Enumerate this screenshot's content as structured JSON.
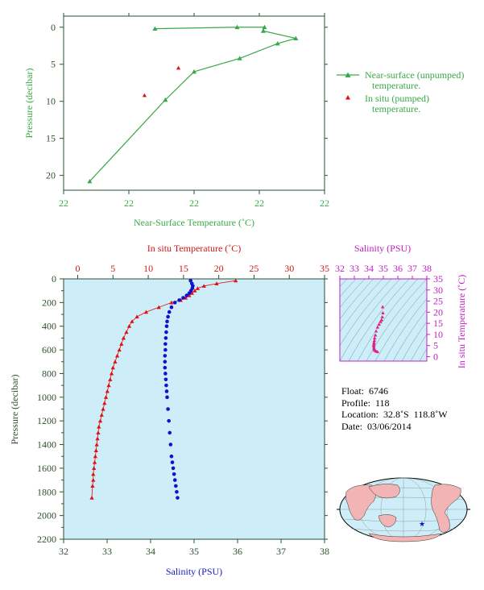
{
  "top_chart": {
    "xlabel": "Near-Surface Temperature (˚C)",
    "ylabel": "Pressure (decibar)",
    "xticks": [
      "22",
      "22",
      "22",
      "22",
      "22"
    ],
    "yticks": [
      "0",
      "5",
      "10",
      "15",
      "20"
    ],
    "legend": {
      "near_surface_line1": "Near-surface (unpumped)",
      "near_surface_line2": "temperature.",
      "in_situ_line1": "In situ (pumped)",
      "in_situ_line2": "temperature."
    }
  },
  "bottom_chart": {
    "top_xlabel": "In situ Temperature (˚C)",
    "bottom_xlabel": "Salinity (PSU)",
    "ylabel": "Pressure (decibar)",
    "temp_ticks": [
      "0",
      "5",
      "10",
      "15",
      "20",
      "25",
      "30",
      "35"
    ],
    "sal_ticks": [
      "32",
      "33",
      "34",
      "35",
      "36",
      "37",
      "38"
    ],
    "pres_ticks": [
      "0",
      "200",
      "400",
      "600",
      "800",
      "1000",
      "1200",
      "1400",
      "1600",
      "1800",
      "2000",
      "2200"
    ]
  },
  "ts_chart": {
    "top_label": "Salinity (PSU)",
    "right_label": "In situ Temperature (˚C)",
    "sal_ticks": [
      "32",
      "33",
      "34",
      "35",
      "36",
      "37",
      "38"
    ],
    "temp_ticks": [
      "0",
      "5",
      "10",
      "15",
      "20",
      "25",
      "30",
      "35"
    ]
  },
  "info": {
    "float": "Float:  6746",
    "profile": "Profile:  118",
    "location": "Location:  32.8˚S  118.8˚W",
    "date": "Date:  03/06/2014"
  },
  "footer_tiny": "",
  "colors": {
    "green": "#3aa84a",
    "red": "#e01010",
    "blue": "#1010d0",
    "magenta": "#e0208a",
    "panel_bg": "#cdeef8"
  },
  "chart_data": [
    {
      "type": "line",
      "title": "",
      "xlabel": "Near-Surface Temperature (˚C)",
      "ylabel": "Pressure (decibar)",
      "x_range_fraction": [
        0,
        1
      ],
      "ylim": [
        22,
        -1.5
      ],
      "series": [
        {
          "name": "Near-surface (unpumped) temperature.",
          "x_fraction": [
            0.35,
            0.665,
            0.77,
            0.765,
            0.89,
            0.82,
            0.675,
            0.5,
            0.39,
            0.1
          ],
          "y": [
            0.2,
            0.0,
            0.0,
            0.5,
            1.5,
            2.2,
            4.2,
            6.0,
            9.8,
            20.8
          ]
        },
        {
          "name": "In situ (pumped) temperature.",
          "x_fraction": [
            0.44,
            0.31
          ],
          "y": [
            5.5,
            9.2
          ]
        }
      ]
    },
    {
      "type": "line",
      "title": "",
      "ylabel": "Pressure (decibar)",
      "ylim": [
        2200,
        0
      ],
      "series": [
        {
          "name": "In situ Temperature (˚C)",
          "xlabel": "In situ Temperature (˚C)",
          "xlim": [
            -2,
            35
          ],
          "x": [
            22.4,
            19.7,
            17.9,
            17.0,
            16.6,
            16.2,
            15.8,
            15.3,
            14.6,
            13.3,
            11.5,
            9.7,
            8.4,
            7.7,
            7.3,
            6.9,
            6.5,
            6.2,
            5.9,
            5.6,
            5.3,
            5.0,
            4.8,
            4.6,
            4.4,
            4.2,
            4.0,
            3.8,
            3.6,
            3.4,
            3.2,
            3.0,
            2.9,
            2.8,
            2.7,
            2.6,
            2.5,
            2.4,
            2.3,
            2.2,
            2.2,
            2.1,
            2.0
          ],
          "y": [
            15,
            40,
            60,
            80,
            100,
            120,
            140,
            160,
            180,
            200,
            240,
            280,
            320,
            360,
            400,
            450,
            500,
            550,
            600,
            650,
            700,
            750,
            800,
            850,
            900,
            950,
            1000,
            1050,
            1100,
            1150,
            1200,
            1250,
            1300,
            1350,
            1400,
            1450,
            1500,
            1550,
            1600,
            1650,
            1700,
            1750,
            1850
          ]
        },
        {
          "name": "Salinity (PSU)",
          "xlabel": "Salinity (PSU)",
          "xlim": [
            32,
            38
          ],
          "x": [
            34.92,
            34.95,
            34.97,
            34.96,
            34.93,
            34.89,
            34.83,
            34.75,
            34.66,
            34.56,
            34.48,
            34.43,
            34.4,
            34.38,
            34.37,
            34.36,
            34.35,
            34.34,
            34.34,
            34.33,
            34.33,
            34.33,
            34.34,
            34.35,
            34.36,
            34.37,
            34.38,
            34.4,
            34.42,
            34.44,
            34.46,
            34.48,
            34.5,
            34.52,
            34.54,
            34.56,
            34.58,
            34.6,
            34.62
          ],
          "y": [
            15,
            40,
            60,
            80,
            100,
            120,
            140,
            160,
            180,
            200,
            240,
            280,
            320,
            360,
            400,
            450,
            500,
            550,
            600,
            650,
            700,
            750,
            800,
            850,
            900,
            950,
            1000,
            1100,
            1200,
            1300,
            1400,
            1500,
            1550,
            1600,
            1650,
            1700,
            1750,
            1800,
            1850
          ]
        }
      ]
    },
    {
      "type": "scatter",
      "title": "",
      "xlabel": "Salinity (PSU)",
      "ylabel": "In situ Temperature (˚C)",
      "xlim": [
        32,
        38
      ],
      "ylim": [
        -2,
        35
      ],
      "series": [
        {
          "name": "",
          "x": [
            34.95,
            34.97,
            34.93,
            34.88,
            34.8,
            34.7,
            34.6,
            34.5,
            34.45,
            34.4,
            34.38,
            34.36,
            34.35,
            34.34,
            34.34,
            34.35,
            34.36,
            34.38,
            34.42,
            34.5,
            34.6
          ],
          "y": [
            22.4,
            19.7,
            17.9,
            16.6,
            15.8,
            14.6,
            13.3,
            11.5,
            9.7,
            8.4,
            7.3,
            6.5,
            5.9,
            5.3,
            4.8,
            4.2,
            3.6,
            3.2,
            2.8,
            2.5,
            2.2
          ]
        }
      ]
    }
  ]
}
